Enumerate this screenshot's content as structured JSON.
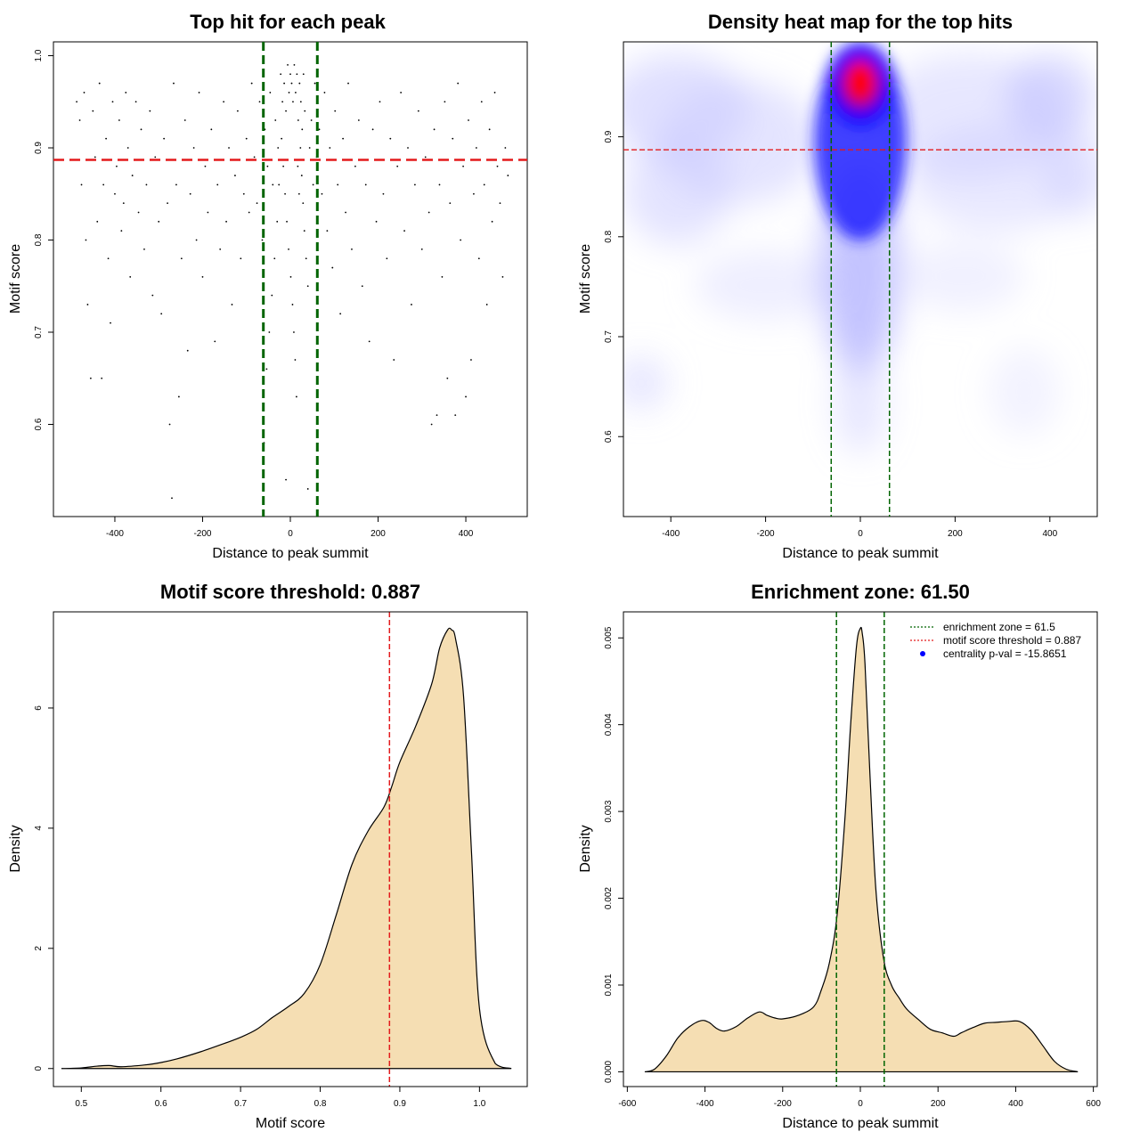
{
  "colors": {
    "threshold": "#e31a1c",
    "zone": "#006400",
    "fill": "#f5deb3",
    "points": "#000000",
    "heat_low": "#ffffff",
    "heat_mid": "#0000ff",
    "heat_high": "#ff0000"
  },
  "chart_data": [
    {
      "id": "scatter",
      "type": "scatter",
      "title": "Top hit for each peak",
      "xlabel": "Distance to peak summit",
      "ylabel": "Motif score",
      "xlim": [
        -540,
        540
      ],
      "ylim": [
        0.5,
        1.015
      ],
      "xticks": [
        -400,
        -200,
        0,
        200,
        400
      ],
      "yticks": [
        0.6,
        0.7,
        0.8,
        0.9,
        1.0
      ],
      "ytick_labels": [
        "0.6",
        "0.7",
        "0.8",
        "0.9",
        "1.0"
      ],
      "hlines": [
        0.887
      ],
      "vlines": [
        -61.5,
        61.5
      ],
      "points": [
        [
          -487,
          0.95
        ],
        [
          -480,
          0.93
        ],
        [
          -476,
          0.86
        ],
        [
          -470,
          0.96
        ],
        [
          -466,
          0.8
        ],
        [
          -462,
          0.73
        ],
        [
          -455,
          0.65
        ],
        [
          -450,
          0.94
        ],
        [
          -445,
          0.89
        ],
        [
          -440,
          0.82
        ],
        [
          -435,
          0.97
        ],
        [
          -430,
          0.65
        ],
        [
          -426,
          0.86
        ],
        [
          -420,
          0.91
        ],
        [
          -415,
          0.78
        ],
        [
          -410,
          0.71
        ],
        [
          -405,
          0.95
        ],
        [
          -400,
          0.85
        ],
        [
          -396,
          0.88
        ],
        [
          -390,
          0.93
        ],
        [
          -385,
          0.81
        ],
        [
          -380,
          0.84
        ],
        [
          -375,
          0.96
        ],
        [
          -370,
          0.9
        ],
        [
          -365,
          0.76
        ],
        [
          -360,
          0.87
        ],
        [
          -352,
          0.95
        ],
        [
          -346,
          0.83
        ],
        [
          -340,
          0.92
        ],
        [
          -333,
          0.79
        ],
        [
          -328,
          0.86
        ],
        [
          -320,
          0.94
        ],
        [
          -314,
          0.74
        ],
        [
          -308,
          0.89
        ],
        [
          -300,
          0.82
        ],
        [
          -294,
          0.72
        ],
        [
          -288,
          0.91
        ],
        [
          -280,
          0.84
        ],
        [
          -275,
          0.6
        ],
        [
          -270,
          0.52
        ],
        [
          -266,
          0.97
        ],
        [
          -260,
          0.86
        ],
        [
          -254,
          0.63
        ],
        [
          -248,
          0.78
        ],
        [
          -240,
          0.93
        ],
        [
          -234,
          0.68
        ],
        [
          -228,
          0.85
        ],
        [
          -220,
          0.9
        ],
        [
          -214,
          0.8
        ],
        [
          -208,
          0.96
        ],
        [
          -200,
          0.76
        ],
        [
          -194,
          0.88
        ],
        [
          -188,
          0.83
        ],
        [
          -180,
          0.92
        ],
        [
          -172,
          0.69
        ],
        [
          -166,
          0.86
        ],
        [
          -160,
          0.79
        ],
        [
          -152,
          0.95
        ],
        [
          -146,
          0.82
        ],
        [
          -140,
          0.9
        ],
        [
          -133,
          0.73
        ],
        [
          -126,
          0.87
        ],
        [
          -120,
          0.94
        ],
        [
          -113,
          0.78
        ],
        [
          -106,
          0.85
        ],
        [
          -100,
          0.91
        ],
        [
          -94,
          0.83
        ],
        [
          -88,
          0.97
        ],
        [
          -82,
          0.89
        ],
        [
          -76,
          0.84
        ],
        [
          -70,
          0.95
        ],
        [
          -64,
          0.8
        ],
        [
          -58,
          0.92
        ],
        [
          -52,
          0.88
        ],
        [
          -46,
          0.96
        ],
        [
          -40,
          0.86
        ],
        [
          -34,
          0.93
        ],
        [
          -28,
          0.9
        ],
        [
          -22,
          0.98
        ],
        [
          -18,
          0.95
        ],
        [
          -14,
          0.97
        ],
        [
          -10,
          0.94
        ],
        [
          -6,
          0.99
        ],
        [
          -3,
          0.96
        ],
        [
          0,
          0.98
        ],
        [
          3,
          0.97
        ],
        [
          6,
          0.95
        ],
        [
          9,
          0.99
        ],
        [
          12,
          0.96
        ],
        [
          15,
          0.98
        ],
        [
          18,
          0.93
        ],
        [
          21,
          0.97
        ],
        [
          24,
          0.95
        ],
        [
          27,
          0.92
        ],
        [
          30,
          0.98
        ],
        [
          33,
          0.94
        ],
        [
          -20,
          0.91
        ],
        [
          -16,
          0.88
        ],
        [
          -12,
          0.85
        ],
        [
          -8,
          0.82
        ],
        [
          -4,
          0.79
        ],
        [
          1,
          0.76
        ],
        [
          5,
          0.73
        ],
        [
          8,
          0.7
        ],
        [
          11,
          0.67
        ],
        [
          14,
          0.63
        ],
        [
          17,
          0.88
        ],
        [
          20,
          0.85
        ],
        [
          23,
          0.9
        ],
        [
          26,
          0.87
        ],
        [
          29,
          0.84
        ],
        [
          32,
          0.81
        ],
        [
          36,
          0.78
        ],
        [
          40,
          0.75
        ],
        [
          44,
          0.9
        ],
        [
          48,
          0.93
        ],
        [
          52,
          0.86
        ],
        [
          56,
          0.97
        ],
        [
          60,
          0.89
        ],
        [
          -26,
          0.86
        ],
        [
          -30,
          0.82
        ],
        [
          -36,
          0.78
        ],
        [
          -42,
          0.74
        ],
        [
          -48,
          0.7
        ],
        [
          -54,
          0.66
        ],
        [
          -60,
          0.58
        ],
        [
          -10,
          0.54
        ],
        [
          40,
          0.53
        ],
        [
          66,
          0.92
        ],
        [
          72,
          0.85
        ],
        [
          78,
          0.96
        ],
        [
          84,
          0.81
        ],
        [
          90,
          0.9
        ],
        [
          96,
          0.77
        ],
        [
          102,
          0.94
        ],
        [
          108,
          0.86
        ],
        [
          114,
          0.72
        ],
        [
          120,
          0.91
        ],
        [
          126,
          0.83
        ],
        [
          132,
          0.97
        ],
        [
          140,
          0.79
        ],
        [
          148,
          0.88
        ],
        [
          156,
          0.93
        ],
        [
          164,
          0.75
        ],
        [
          172,
          0.86
        ],
        [
          180,
          0.69
        ],
        [
          188,
          0.92
        ],
        [
          196,
          0.82
        ],
        [
          204,
          0.95
        ],
        [
          212,
          0.85
        ],
        [
          220,
          0.78
        ],
        [
          228,
          0.91
        ],
        [
          236,
          0.67
        ],
        [
          244,
          0.88
        ],
        [
          252,
          0.96
        ],
        [
          260,
          0.81
        ],
        [
          268,
          0.9
        ],
        [
          276,
          0.73
        ],
        [
          284,
          0.86
        ],
        [
          292,
          0.94
        ],
        [
          300,
          0.79
        ],
        [
          308,
          0.89
        ],
        [
          316,
          0.83
        ],
        [
          322,
          0.6
        ],
        [
          328,
          0.92
        ],
        [
          334,
          0.61
        ],
        [
          340,
          0.86
        ],
        [
          346,
          0.76
        ],
        [
          352,
          0.95
        ],
        [
          358,
          0.65
        ],
        [
          364,
          0.84
        ],
        [
          370,
          0.91
        ],
        [
          376,
          0.61
        ],
        [
          382,
          0.97
        ],
        [
          388,
          0.8
        ],
        [
          394,
          0.88
        ],
        [
          400,
          0.63
        ],
        [
          406,
          0.93
        ],
        [
          412,
          0.67
        ],
        [
          418,
          0.85
        ],
        [
          424,
          0.9
        ],
        [
          430,
          0.78
        ],
        [
          436,
          0.95
        ],
        [
          442,
          0.86
        ],
        [
          448,
          0.73
        ],
        [
          454,
          0.92
        ],
        [
          460,
          0.82
        ],
        [
          466,
          0.96
        ],
        [
          472,
          0.88
        ],
        [
          478,
          0.84
        ],
        [
          484,
          0.76
        ],
        [
          490,
          0.9
        ],
        [
          496,
          0.87
        ]
      ]
    },
    {
      "id": "heatmap",
      "type": "heatmap",
      "title": "Density heat map for the top hits",
      "xlabel": "Distance to peak summit",
      "ylabel": "Motif score",
      "xlim": [
        -500,
        500
      ],
      "ylim": [
        0.52,
        0.995
      ],
      "xticks": [
        -400,
        -200,
        0,
        200,
        400
      ],
      "yticks": [
        0.6,
        0.7,
        0.8,
        0.9
      ],
      "ytick_labels": [
        "0.6",
        "0.7",
        "0.8",
        "0.9"
      ],
      "hlines": [
        0.887
      ],
      "vlines": [
        -61.5,
        61.5
      ],
      "hotspot": {
        "x": 5,
        "y": 0.96
      }
    },
    {
      "id": "score-density",
      "type": "area",
      "title": "Motif score threshold: 0.887",
      "xlabel": "Motif score",
      "ylabel": "Density",
      "xlim": [
        0.465,
        1.06
      ],
      "ylim": [
        -0.3,
        7.6
      ],
      "xticks": [
        0.5,
        0.6,
        0.7,
        0.8,
        0.9,
        1.0
      ],
      "xtick_labels": [
        "0.5",
        "0.6",
        "0.7",
        "0.8",
        "0.9",
        "1.0"
      ],
      "yticks": [
        0,
        2,
        4,
        6
      ],
      "ytick_labels": [
        "0",
        "2",
        "4",
        "6"
      ],
      "vlines_threshold": [
        0.887
      ],
      "x": [
        0.475,
        0.5,
        0.52,
        0.535,
        0.55,
        0.58,
        0.6,
        0.62,
        0.65,
        0.68,
        0.7,
        0.72,
        0.74,
        0.76,
        0.78,
        0.8,
        0.82,
        0.84,
        0.86,
        0.88,
        0.89,
        0.9,
        0.92,
        0.94,
        0.95,
        0.96,
        0.965,
        0.97,
        0.98,
        0.99,
        1.0,
        1.02,
        1.04
      ],
      "y": [
        0.0,
        0.01,
        0.04,
        0.05,
        0.03,
        0.06,
        0.1,
        0.16,
        0.28,
        0.42,
        0.52,
        0.65,
        0.85,
        1.03,
        1.25,
        1.73,
        2.55,
        3.4,
        3.95,
        4.35,
        4.7,
        5.1,
        5.7,
        6.4,
        7.0,
        7.3,
        7.3,
        7.15,
        6.2,
        3.6,
        1.0,
        0.08,
        0.0
      ]
    },
    {
      "id": "distance-density",
      "type": "area",
      "title": "Enrichment zone: 61.50",
      "xlabel": "Distance to peak summit",
      "ylabel": "Density",
      "xlim": [
        -610,
        610
      ],
      "ylim": [
        -0.00017,
        0.0053
      ],
      "xticks": [
        -600,
        -400,
        -200,
        0,
        200,
        400,
        600
      ],
      "yticks": [
        0.0,
        0.001,
        0.002,
        0.003,
        0.004,
        0.005
      ],
      "ytick_labels": [
        "0.000",
        "0.001",
        "0.002",
        "0.003",
        "0.004",
        "0.005"
      ],
      "vlines_zone": [
        -61.5,
        61.5
      ],
      "x": [
        -555,
        -530,
        -500,
        -470,
        -440,
        -410,
        -390,
        -370,
        -350,
        -320,
        -290,
        -260,
        -240,
        -220,
        -200,
        -160,
        -120,
        -100,
        -80,
        -60,
        -40,
        -25,
        -10,
        0,
        5,
        12,
        25,
        40,
        60,
        80,
        100,
        120,
        150,
        180,
        210,
        240,
        260,
        290,
        320,
        350,
        380,
        410,
        440,
        470,
        500,
        530,
        560
      ],
      "y": [
        0.0,
        3e-05,
        0.00018,
        0.00039,
        0.00052,
        0.00059,
        0.00057,
        0.0005,
        0.00047,
        0.00052,
        0.00062,
        0.00069,
        0.00065,
        0.00062,
        0.00061,
        0.00065,
        0.00075,
        0.00095,
        0.00125,
        0.0018,
        0.0029,
        0.004,
        0.0049,
        0.00511,
        0.00505,
        0.0047,
        0.0034,
        0.0021,
        0.0013,
        0.001,
        0.00085,
        0.00072,
        0.0006,
        0.00049,
        0.00045,
        0.00041,
        0.00045,
        0.00051,
        0.00056,
        0.00057,
        0.00058,
        0.00058,
        0.00048,
        0.0003,
        0.00012,
        3e-05,
        0.0
      ],
      "legend": [
        {
          "label": "enrichment zone = 61.5",
          "kind": "zone"
        },
        {
          "label": "motif score threshold = 0.887",
          "kind": "threshold"
        },
        {
          "label": "centrality p-val = -15.8651",
          "kind": "point"
        }
      ]
    }
  ]
}
